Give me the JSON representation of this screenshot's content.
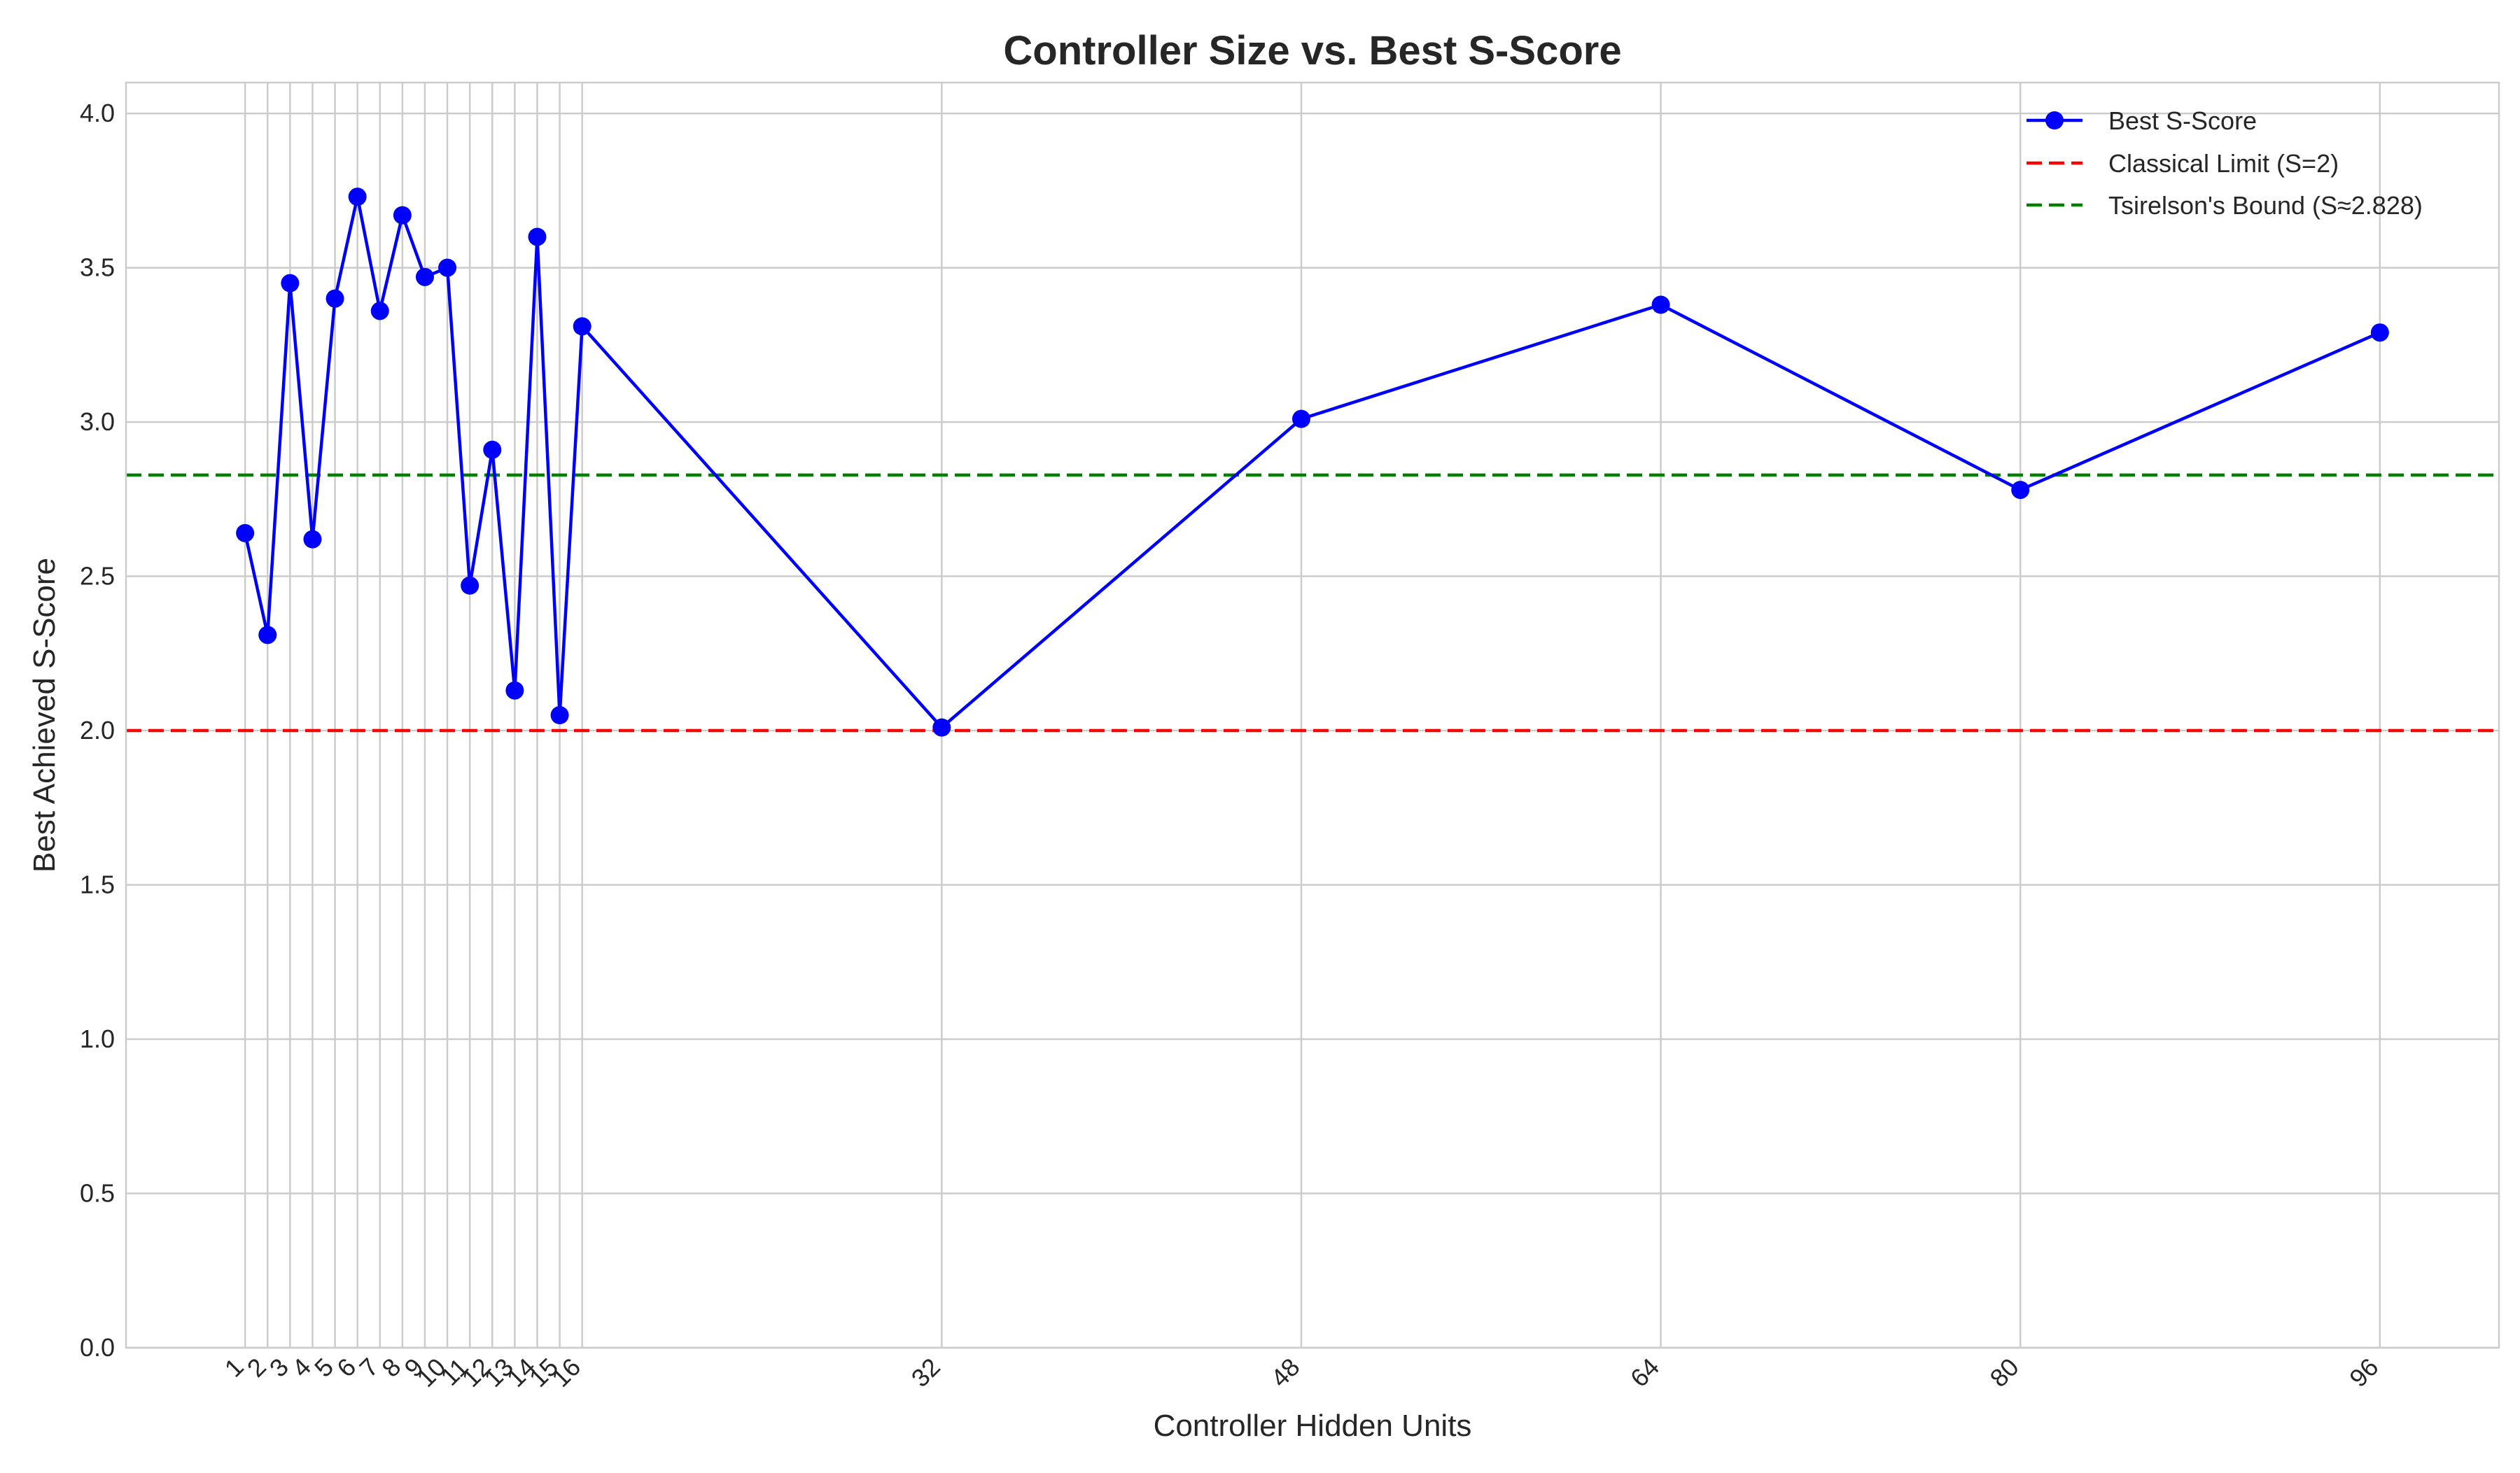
{
  "chart_data": {
    "type": "line",
    "title": "Controller Size vs. Best S-Score",
    "xlabel": "Controller Hidden Units",
    "ylabel": "Best Achieved S-Score",
    "xlim": [
      -4.3,
      101.3
    ],
    "ylim": [
      0,
      4.1
    ],
    "x_ticks": [
      1,
      2,
      3,
      4,
      5,
      6,
      7,
      8,
      9,
      10,
      11,
      12,
      13,
      14,
      15,
      16,
      32,
      48,
      64,
      80,
      96
    ],
    "x_tick_labels": [
      "1",
      "2",
      "3",
      "4",
      "5",
      "6",
      "7",
      "8",
      "9",
      "10",
      "11",
      "12",
      "13",
      "14",
      "15",
      "16",
      "32",
      "48",
      "64",
      "80",
      "96"
    ],
    "y_ticks": [
      0,
      0.5,
      1.0,
      1.5,
      2.0,
      2.5,
      3.0,
      3.5,
      4.0
    ],
    "y_tick_labels": [
      "0.0",
      "0.5",
      "1.0",
      "1.5",
      "2.0",
      "2.5",
      "3.0",
      "3.5",
      "4.0"
    ],
    "grid": true,
    "legend_position": "top-right",
    "series": [
      {
        "name": "Best S-Score",
        "color": "#0000ff",
        "style": "line-with-circle-markers",
        "x": [
          1,
          2,
          3,
          4,
          5,
          6,
          7,
          8,
          9,
          10,
          11,
          12,
          13,
          14,
          15,
          16,
          32,
          48,
          64,
          80,
          96
        ],
        "values": [
          2.64,
          2.31,
          3.45,
          2.62,
          3.4,
          3.73,
          3.36,
          3.67,
          3.47,
          3.5,
          2.47,
          2.91,
          2.13,
          3.6,
          2.05,
          3.31,
          2.01,
          3.01,
          3.38,
          2.78,
          3.29
        ]
      }
    ],
    "reference_lines": [
      {
        "name": "Classical Limit (S=2)",
        "value": 2.0,
        "color": "#ff0000",
        "style": "dashed"
      },
      {
        "name": "Tsirelson's Bound (S≈2.828)",
        "value": 2.828,
        "color": "#008000",
        "style": "dashed"
      }
    ]
  }
}
